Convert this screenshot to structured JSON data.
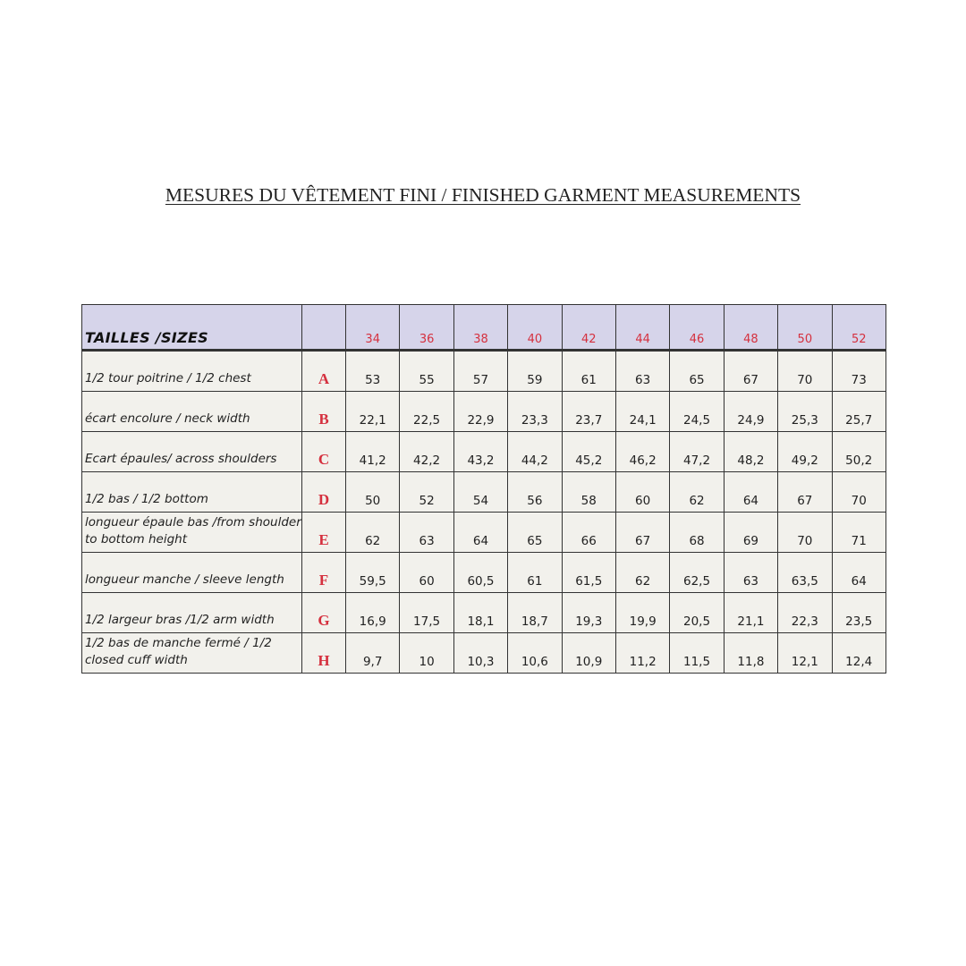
{
  "title": "MESURES DU VÊTEMENT FINI / FINISHED GARMENT MEASUREMENTS",
  "table": {
    "header_label": "TAILLES /SIZES",
    "sizes": [
      "34",
      "36",
      "38",
      "40",
      "42",
      "44",
      "46",
      "48",
      "50",
      "52"
    ],
    "rows": [
      {
        "label": "1/2 tour poitrine / 1/2 chest",
        "letter": "A",
        "values": [
          "53",
          "55",
          "57",
          "59",
          "61",
          "63",
          "65",
          "67",
          "70",
          "73"
        ]
      },
      {
        "label": "écart encolure  / neck width",
        "letter": "B",
        "values": [
          "22,1",
          "22,5",
          "22,9",
          "23,3",
          "23,7",
          "24,1",
          "24,5",
          "24,9",
          "25,3",
          "25,7"
        ]
      },
      {
        "label": "Ecart épaules/ across shoulders",
        "letter": "C",
        "values": [
          "41,2",
          "42,2",
          "43,2",
          "44,2",
          "45,2",
          "46,2",
          "47,2",
          "48,2",
          "49,2",
          "50,2"
        ]
      },
      {
        "label": "1/2 bas / 1/2 bottom",
        "letter": "D",
        "values": [
          "50",
          "52",
          "54",
          "56",
          "58",
          "60",
          "62",
          "64",
          "67",
          "70"
        ]
      },
      {
        "label": "longueur épaule bas  /from shoulder to bottom height",
        "letter": "E",
        "values": [
          "62",
          "63",
          "64",
          "65",
          "66",
          "67",
          "68",
          "69",
          "70",
          "71"
        ]
      },
      {
        "label": "longueur manche  / sleeve length",
        "letter": "F",
        "values": [
          "59,5",
          "60",
          "60,5",
          "61",
          "61,5",
          "62",
          "62,5",
          "63",
          "63,5",
          "64"
        ]
      },
      {
        "label": "1/2 largeur bras /1/2  arm width",
        "letter": "G",
        "values": [
          "16,9",
          "17,5",
          "18,1",
          "18,7",
          "19,3",
          "19,9",
          "20,5",
          "21,1",
          "22,3",
          "23,5"
        ]
      },
      {
        "label": "1/2 bas de manche fermé  / 1/2 closed cuff width",
        "letter": "H",
        "values": [
          "9,7",
          "10",
          "10,3",
          "10,6",
          "10,9",
          "11,2",
          "11,5",
          "11,8",
          "12,1",
          "12,4"
        ]
      }
    ]
  }
}
